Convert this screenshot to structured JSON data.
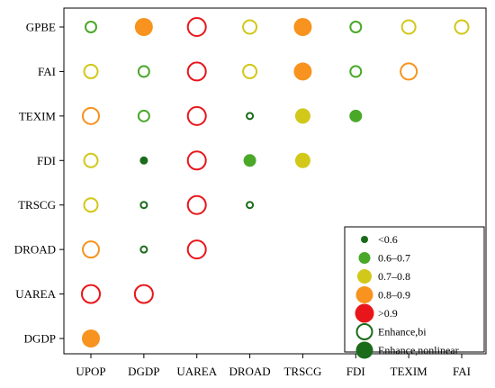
{
  "chart_data": {
    "type": "scatter",
    "subtype": "interaction-matrix",
    "x_categories": [
      "UPOP",
      "DGDP",
      "UAREA",
      "DROAD",
      "TRSCG",
      "FDI",
      "TEXIM",
      "FAI"
    ],
    "y_categories": [
      "GPBE",
      "FAI",
      "TEXIM",
      "FDI",
      "TRSCG",
      "DROAD",
      "UAREA",
      "DGDP"
    ],
    "value_bins": [
      {
        "key": "lt06",
        "label": "<0.6",
        "color": "#1a6b1a"
      },
      {
        "key": "b0607",
        "label": "0.6–0.7",
        "color": "#4aa829"
      },
      {
        "key": "b0708",
        "label": "0.7–0.8",
        "color": "#d1c81a"
      },
      {
        "key": "b0809",
        "label": "0.8–0.9",
        "color": "#f7931e"
      },
      {
        "key": "gt09",
        "label": ">0.9",
        "color": "#e8161b"
      }
    ],
    "enhance_types": [
      {
        "key": "bi",
        "label": "Enhance,bi",
        "style": "hollow"
      },
      {
        "key": "nonlinear",
        "label": "Enhance,nonlinear",
        "style": "filled"
      }
    ],
    "points": [
      {
        "x": "UPOP",
        "y": "GPBE",
        "bin": "b0607",
        "type": "bi"
      },
      {
        "x": "DGDP",
        "y": "GPBE",
        "bin": "b0809",
        "type": "nonlinear"
      },
      {
        "x": "UAREA",
        "y": "GPBE",
        "bin": "gt09",
        "type": "bi"
      },
      {
        "x": "DROAD",
        "y": "GPBE",
        "bin": "b0708",
        "type": "bi"
      },
      {
        "x": "TRSCG",
        "y": "GPBE",
        "bin": "b0809",
        "type": "nonlinear"
      },
      {
        "x": "FDI",
        "y": "GPBE",
        "bin": "b0607",
        "type": "bi"
      },
      {
        "x": "TEXIM",
        "y": "GPBE",
        "bin": "b0708",
        "type": "bi"
      },
      {
        "x": "FAI",
        "y": "GPBE",
        "bin": "b0708",
        "type": "bi"
      },
      {
        "x": "UPOP",
        "y": "FAI",
        "bin": "b0708",
        "type": "bi"
      },
      {
        "x": "DGDP",
        "y": "FAI",
        "bin": "b0607",
        "type": "bi"
      },
      {
        "x": "UAREA",
        "y": "FAI",
        "bin": "gt09",
        "type": "bi"
      },
      {
        "x": "DROAD",
        "y": "FAI",
        "bin": "b0708",
        "type": "bi"
      },
      {
        "x": "TRSCG",
        "y": "FAI",
        "bin": "b0809",
        "type": "nonlinear"
      },
      {
        "x": "FDI",
        "y": "FAI",
        "bin": "b0607",
        "type": "bi"
      },
      {
        "x": "TEXIM",
        "y": "FAI",
        "bin": "b0809",
        "type": "bi"
      },
      {
        "x": "UPOP",
        "y": "TEXIM",
        "bin": "b0809",
        "type": "bi"
      },
      {
        "x": "DGDP",
        "y": "TEXIM",
        "bin": "b0607",
        "type": "bi"
      },
      {
        "x": "UAREA",
        "y": "TEXIM",
        "bin": "gt09",
        "type": "bi"
      },
      {
        "x": "DROAD",
        "y": "TEXIM",
        "bin": "lt06",
        "type": "bi"
      },
      {
        "x": "TRSCG",
        "y": "TEXIM",
        "bin": "b0708",
        "type": "nonlinear"
      },
      {
        "x": "FDI",
        "y": "TEXIM",
        "bin": "b0607",
        "type": "nonlinear"
      },
      {
        "x": "UPOP",
        "y": "FDI",
        "bin": "b0708",
        "type": "bi"
      },
      {
        "x": "DGDP",
        "y": "FDI",
        "bin": "lt06",
        "type": "nonlinear"
      },
      {
        "x": "UAREA",
        "y": "FDI",
        "bin": "gt09",
        "type": "bi"
      },
      {
        "x": "DROAD",
        "y": "FDI",
        "bin": "b0607",
        "type": "nonlinear"
      },
      {
        "x": "TRSCG",
        "y": "FDI",
        "bin": "b0708",
        "type": "nonlinear"
      },
      {
        "x": "UPOP",
        "y": "TRSCG",
        "bin": "b0708",
        "type": "bi"
      },
      {
        "x": "DGDP",
        "y": "TRSCG",
        "bin": "lt06",
        "type": "bi"
      },
      {
        "x": "UAREA",
        "y": "TRSCG",
        "bin": "gt09",
        "type": "bi"
      },
      {
        "x": "DROAD",
        "y": "TRSCG",
        "bin": "lt06",
        "type": "bi"
      },
      {
        "x": "UPOP",
        "y": "DROAD",
        "bin": "b0809",
        "type": "bi"
      },
      {
        "x": "DGDP",
        "y": "DROAD",
        "bin": "lt06",
        "type": "bi"
      },
      {
        "x": "UAREA",
        "y": "DROAD",
        "bin": "gt09",
        "type": "bi"
      },
      {
        "x": "UPOP",
        "y": "UAREA",
        "bin": "gt09",
        "type": "bi"
      },
      {
        "x": "DGDP",
        "y": "UAREA",
        "bin": "gt09",
        "type": "bi"
      },
      {
        "x": "UPOP",
        "y": "DGDP",
        "bin": "b0809",
        "type": "nonlinear"
      }
    ],
    "legend_position": "bottom-right",
    "grid": false
  }
}
